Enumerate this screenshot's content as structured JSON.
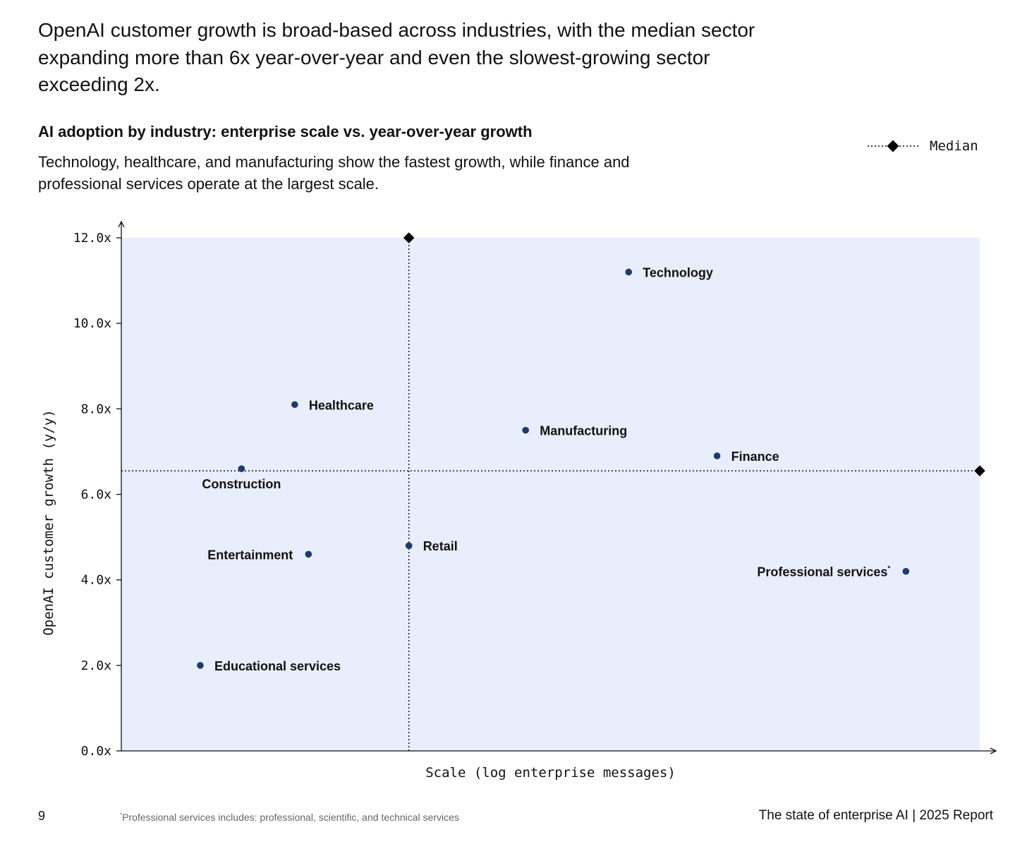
{
  "page": {
    "headline": "OpenAI customer growth is broad-based across industries, with the median sector expanding more than 6x year-over-year and even the slowest-growing sector exceeding 2x.",
    "page_number": "9",
    "footnote_marker": "*",
    "footnote": "Professional services includes: professional, scientific, and technical services",
    "report_brand": "The state of enterprise AI  |  2025 Report"
  },
  "legend": {
    "median_label": "Median"
  },
  "colors": {
    "plot_background": "#e8eefc",
    "point": "#1f3a6e",
    "axis": "#111111",
    "median_marker": "#000000"
  },
  "chart_data": {
    "type": "scatter",
    "title": "AI adoption by industry: enterprise scale vs. year-over-year growth",
    "subtitle": "Technology, healthcare, and manufacturing show the fastest growth, while finance and professional services operate at the largest scale.",
    "xlabel": "Scale (log enterprise messages)",
    "ylabel": "OpenAI customer growth (y/y)",
    "x_scale": "log",
    "x_ticks_shown": false,
    "ylim": [
      0,
      12
    ],
    "yticks": [
      "0.0x",
      "2.0x",
      "4.0x",
      "6.0x",
      "8.0x",
      "10.0x",
      "12.0x"
    ],
    "median": {
      "x_relative": 0.335,
      "y": 6.55
    },
    "points": [
      {
        "label": "Technology",
        "x_relative": 0.591,
        "y": 11.2,
        "label_side": "right"
      },
      {
        "label": "Healthcare",
        "x_relative": 0.202,
        "y": 8.1,
        "label_side": "right"
      },
      {
        "label": "Manufacturing",
        "x_relative": 0.471,
        "y": 7.5,
        "label_side": "right"
      },
      {
        "label": "Finance",
        "x_relative": 0.694,
        "y": 6.9,
        "label_side": "right"
      },
      {
        "label": "Construction",
        "x_relative": 0.14,
        "y": 6.6,
        "label_side": "below"
      },
      {
        "label": "Retail",
        "x_relative": 0.335,
        "y": 4.8,
        "label_side": "right"
      },
      {
        "label": "Entertainment",
        "x_relative": 0.218,
        "y": 4.6,
        "label_side": "left"
      },
      {
        "label": "Professional  services",
        "label_marker": "*",
        "x_relative": 0.914,
        "y": 4.2,
        "label_side": "left"
      },
      {
        "label": "Educational services",
        "x_relative": 0.092,
        "y": 2.0,
        "label_side": "right"
      }
    ],
    "grid": false,
    "legend_position": "top-right"
  }
}
